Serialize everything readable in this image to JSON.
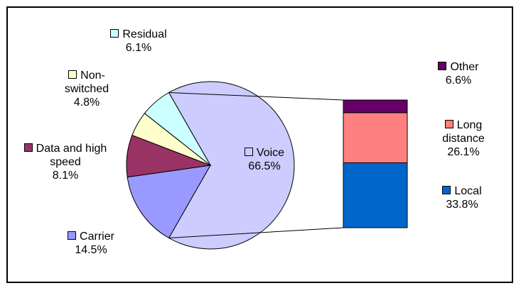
{
  "chart_data": {
    "type": "bar-of-pie",
    "pie": {
      "categories": [
        "Voice",
        "Carrier",
        "Data and high speed",
        "Non-switched",
        "Residual"
      ],
      "values": [
        66.5,
        14.5,
        8.1,
        4.8,
        6.1
      ],
      "value_labels": [
        "66.5%",
        "14.5%",
        "8.1%",
        "4.8%",
        "6.1%"
      ],
      "colors": [
        "#ccccff",
        "#9999ff",
        "#993366",
        "#ffffcc",
        "#ccffff"
      ]
    },
    "bar": {
      "categories": [
        "Local",
        "Long distance",
        "Other"
      ],
      "values": [
        33.8,
        26.1,
        6.6
      ],
      "value_labels": [
        "33.8%",
        "26.1%",
        "6.6%"
      ],
      "colors": [
        "#0066cc",
        "#ff8080",
        "#660066"
      ]
    }
  }
}
